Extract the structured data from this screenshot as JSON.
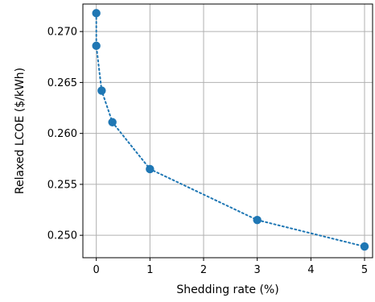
{
  "chart_data": {
    "type": "line",
    "title": "",
    "xlabel": "Shedding rate (%)",
    "ylabel": "Relaxed LCOE ($/kWh)",
    "xlim": [
      -0.25,
      5.15
    ],
    "ylim": [
      0.2478,
      0.2727
    ],
    "xticks": [
      0,
      1,
      2,
      3,
      4,
      5
    ],
    "xtick_labels": [
      "0",
      "1",
      "2",
      "3",
      "4",
      "5"
    ],
    "yticks": [
      0.25,
      0.255,
      0.26,
      0.265,
      0.27
    ],
    "ytick_labels": [
      "0.250",
      "0.255",
      "0.260",
      "0.265",
      "0.270"
    ],
    "grid": true,
    "line_style": "dotted",
    "marker": "circle",
    "color": "#1f77b4",
    "series": [
      {
        "x": [
          0,
          0,
          0.1,
          0.3,
          1,
          3,
          5
        ],
        "y": [
          0.2718,
          0.2686,
          0.2642,
          0.2611,
          0.2565,
          0.2515,
          0.2489
        ]
      }
    ]
  }
}
